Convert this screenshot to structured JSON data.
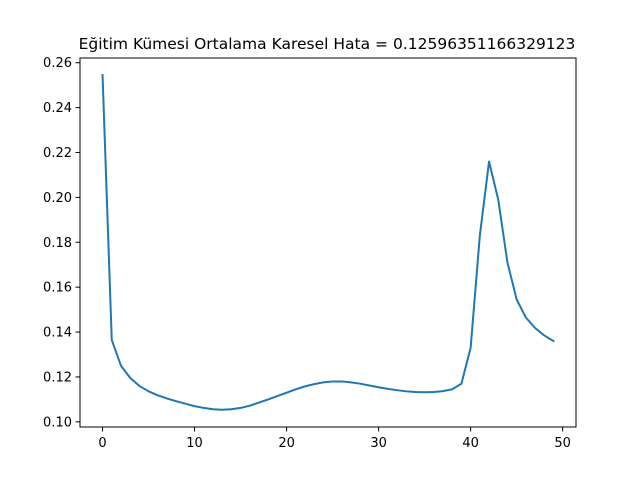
{
  "chart_data": {
    "type": "line",
    "title": "Eğitim Kümesi Ortalama Karesel Hata = 0.12596351166329123",
    "xlabel": "",
    "ylabel": "",
    "xlim": [
      -2.45,
      51.45
    ],
    "ylim": [
      0.0977,
      0.2621
    ],
    "xticks": [
      0,
      10,
      20,
      30,
      40,
      50
    ],
    "yticks": [
      0.1,
      0.12,
      0.14,
      0.16,
      0.18,
      0.2,
      0.22,
      0.24,
      0.26
    ],
    "xtick_labels": [
      "0",
      "10",
      "20",
      "30",
      "40",
      "50"
    ],
    "ytick_labels": [
      "0.10",
      "0.12",
      "0.14",
      "0.16",
      "0.18",
      "0.20",
      "0.22",
      "0.24",
      "0.26"
    ],
    "grid": false,
    "legend": "none",
    "line_color": "#1f77b4",
    "series": [
      {
        "x": [
          0,
          1,
          2,
          3,
          4,
          5,
          6,
          7,
          8,
          9,
          10,
          11,
          12,
          13,
          14,
          15,
          16,
          17,
          18,
          19,
          20,
          21,
          22,
          23,
          24,
          25,
          26,
          27,
          28,
          29,
          30,
          31,
          32,
          33,
          34,
          35,
          36,
          37,
          38,
          39,
          40,
          41,
          42,
          43,
          44,
          45,
          46,
          47,
          48,
          49
        ],
        "values": [
          0.2545,
          0.1365,
          0.125,
          0.1196,
          0.116,
          0.1136,
          0.1118,
          0.1104,
          0.1092,
          0.1081,
          0.107,
          0.1062,
          0.1056,
          0.1054,
          0.1056,
          0.1062,
          0.1072,
          0.1086,
          0.11,
          0.1115,
          0.113,
          0.1145,
          0.1158,
          0.1168,
          0.1176,
          0.118,
          0.118,
          0.1176,
          0.117,
          0.1162,
          0.1154,
          0.1147,
          0.1141,
          0.1136,
          0.1133,
          0.1132,
          0.1133,
          0.1137,
          0.1145,
          0.117,
          0.133,
          0.183,
          0.216,
          0.199,
          0.171,
          0.1545,
          0.1465,
          0.1418,
          0.1385,
          0.136
        ]
      }
    ]
  }
}
